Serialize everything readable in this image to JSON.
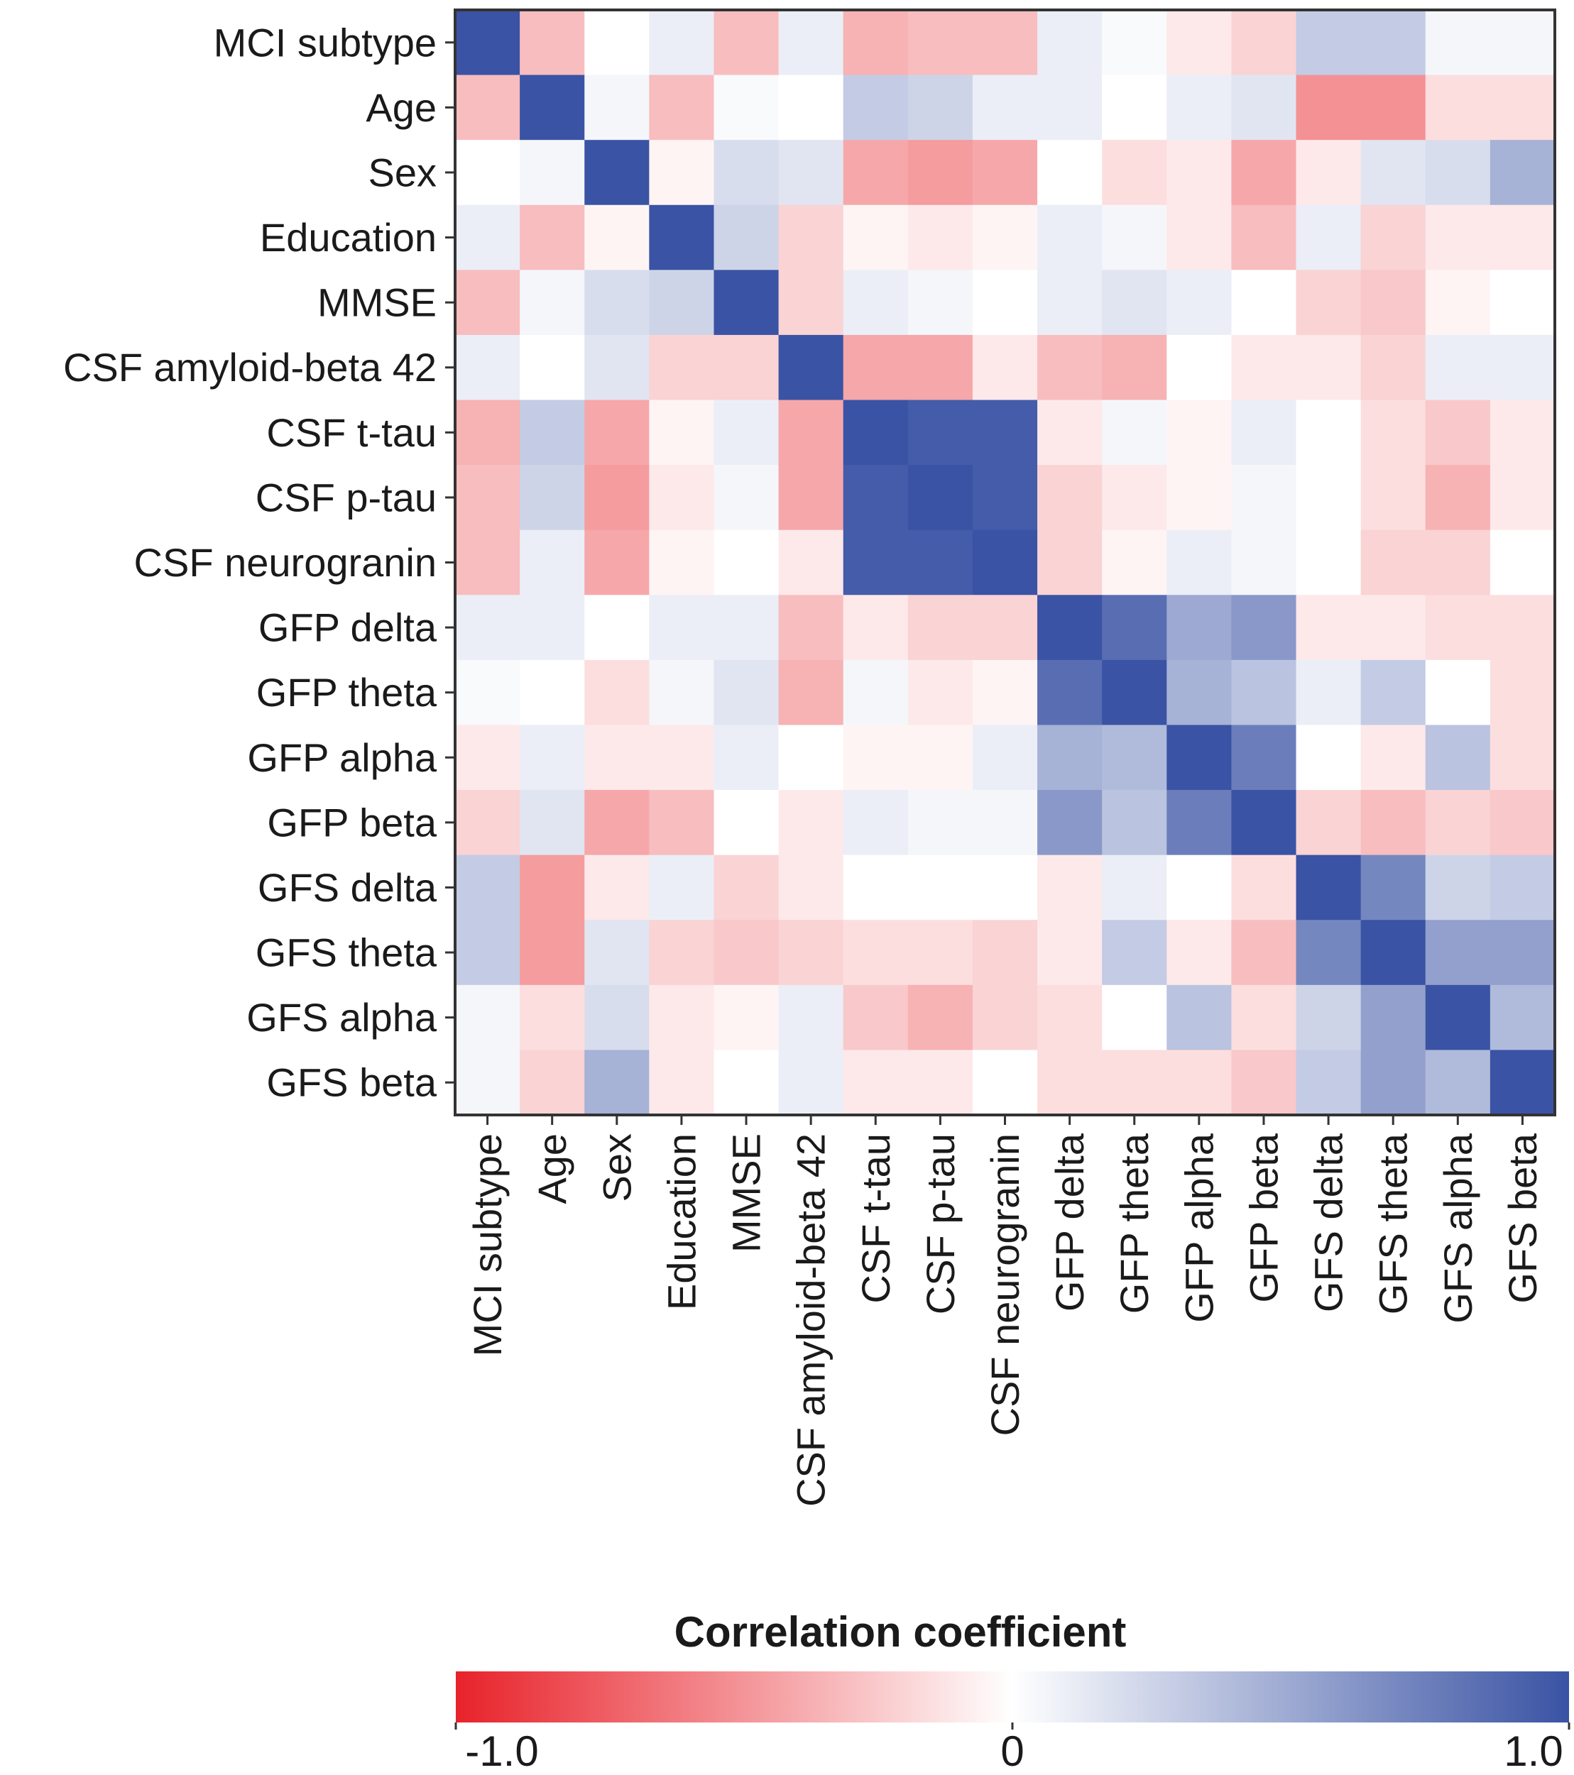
{
  "chart_data": {
    "type": "heatmap",
    "title": "",
    "variables": [
      "MCI subtype",
      "Age",
      "Sex",
      "Education",
      "MMSE",
      "CSF amyloid-beta 42",
      "CSF t-tau",
      "CSF p-tau",
      "CSF neurogranin",
      "GFP delta",
      "GFP theta",
      "GFP alpha",
      "GFP beta",
      "GFS delta",
      "GFS theta",
      "GFS alpha",
      "GFS beta"
    ],
    "values": [
      [
        1.0,
        -0.3,
        0.0,
        0.1,
        -0.3,
        0.1,
        -0.35,
        -0.3,
        -0.3,
        0.1,
        0.03,
        -0.1,
        -0.2,
        0.3,
        0.3,
        0.05,
        0.05
      ],
      [
        -0.3,
        1.0,
        0.05,
        -0.3,
        0.03,
        0.0,
        0.3,
        0.25,
        0.1,
        0.1,
        0.0,
        0.1,
        0.15,
        -0.5,
        -0.5,
        -0.15,
        -0.15
      ],
      [
        0.0,
        0.05,
        1.0,
        -0.05,
        0.2,
        0.15,
        -0.4,
        -0.45,
        -0.4,
        0.0,
        -0.15,
        -0.1,
        -0.4,
        -0.1,
        0.15,
        0.2,
        0.45
      ],
      [
        0.1,
        -0.3,
        -0.05,
        1.0,
        0.25,
        -0.2,
        -0.05,
        -0.1,
        -0.05,
        0.1,
        0.05,
        -0.1,
        -0.3,
        0.1,
        -0.2,
        -0.1,
        -0.1
      ],
      [
        -0.3,
        0.05,
        0.2,
        0.25,
        1.0,
        -0.2,
        0.1,
        0.05,
        0.0,
        0.1,
        0.15,
        0.1,
        0.0,
        -0.2,
        -0.25,
        -0.05,
        0.0
      ],
      [
        0.1,
        0.0,
        0.15,
        -0.2,
        -0.2,
        1.0,
        -0.4,
        -0.4,
        -0.1,
        -0.3,
        -0.35,
        0.0,
        -0.1,
        -0.1,
        -0.2,
        0.1,
        0.1
      ],
      [
        -0.35,
        0.3,
        -0.4,
        -0.05,
        0.1,
        -0.4,
        1.0,
        0.95,
        0.95,
        -0.1,
        0.05,
        -0.05,
        0.1,
        0.0,
        -0.15,
        -0.25,
        -0.1
      ],
      [
        -0.3,
        0.25,
        -0.45,
        -0.1,
        0.05,
        -0.4,
        0.95,
        1.0,
        0.95,
        -0.2,
        -0.1,
        -0.05,
        0.05,
        0.0,
        -0.15,
        -0.35,
        -0.1
      ],
      [
        -0.3,
        0.1,
        -0.4,
        -0.05,
        0.0,
        -0.1,
        0.95,
        0.95,
        1.0,
        -0.2,
        -0.05,
        0.1,
        0.05,
        0.0,
        -0.2,
        -0.2,
        0.0
      ],
      [
        0.1,
        0.1,
        0.0,
        0.1,
        0.1,
        -0.3,
        -0.1,
        -0.2,
        -0.2,
        1.0,
        0.85,
        0.5,
        0.6,
        -0.1,
        -0.1,
        -0.15,
        -0.15
      ],
      [
        0.03,
        0.0,
        -0.15,
        0.05,
        0.15,
        -0.35,
        0.05,
        -0.1,
        -0.05,
        0.85,
        1.0,
        0.45,
        0.35,
        0.1,
        0.3,
        0.0,
        -0.15
      ],
      [
        -0.1,
        0.1,
        -0.1,
        -0.1,
        0.1,
        0.0,
        -0.05,
        -0.05,
        0.1,
        0.45,
        0.4,
        1.0,
        0.75,
        0.0,
        -0.1,
        0.35,
        -0.15
      ],
      [
        -0.2,
        0.15,
        -0.4,
        -0.3,
        0.0,
        -0.1,
        0.1,
        0.05,
        0.05,
        0.6,
        0.35,
        0.75,
        1.0,
        -0.2,
        -0.3,
        -0.2,
        -0.25
      ],
      [
        0.3,
        -0.45,
        -0.1,
        0.1,
        -0.2,
        -0.1,
        0.0,
        0.0,
        0.0,
        -0.1,
        0.1,
        0.0,
        -0.15,
        1.0,
        0.7,
        0.25,
        0.3
      ],
      [
        0.3,
        -0.45,
        0.15,
        -0.2,
        -0.25,
        -0.2,
        -0.15,
        -0.15,
        -0.2,
        -0.1,
        0.3,
        -0.1,
        -0.3,
        0.7,
        1.0,
        0.55,
        0.55
      ],
      [
        0.05,
        -0.15,
        0.2,
        -0.1,
        -0.05,
        0.1,
        -0.25,
        -0.35,
        -0.2,
        -0.15,
        0.0,
        0.35,
        -0.15,
        0.25,
        0.55,
        1.0,
        0.4
      ],
      [
        0.05,
        -0.2,
        0.45,
        -0.1,
        0.0,
        0.1,
        -0.1,
        -0.1,
        0.0,
        -0.15,
        -0.15,
        -0.15,
        -0.25,
        0.3,
        0.55,
        0.4,
        1.0
      ]
    ],
    "colorbar": {
      "title": "Correlation coefficient",
      "min": -1.0,
      "max": 1.0,
      "tick_labels": [
        "-1.0",
        "0",
        "1.0"
      ],
      "low_color": "#e8222a",
      "mid_color": "#ffffff",
      "high_color": "#3a53a4"
    }
  }
}
